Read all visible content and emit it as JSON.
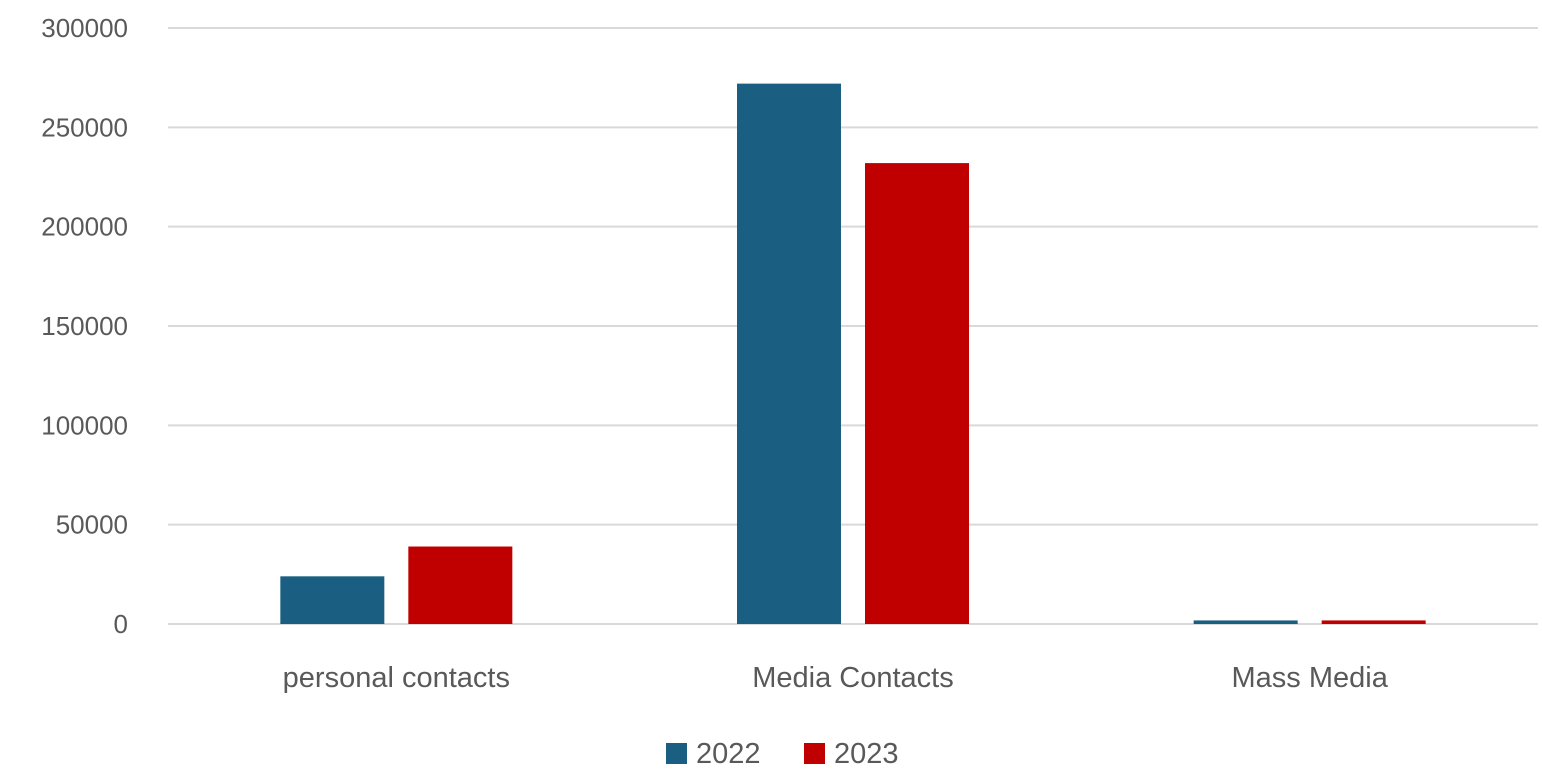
{
  "chart_data": {
    "type": "bar",
    "categories": [
      "personal contacts",
      "Media Contacts",
      "Mass Media"
    ],
    "series": [
      {
        "name": "2022",
        "color": "#1a5e82",
        "values": [
          24000,
          272000,
          1800
        ]
      },
      {
        "name": "2023",
        "color": "#c00000",
        "values": [
          39000,
          232000,
          1800
        ]
      }
    ],
    "ylim": [
      0,
      300000
    ],
    "yticks": [
      0,
      50000,
      100000,
      150000,
      200000,
      250000,
      300000
    ],
    "ytick_labels": [
      "0",
      "50000",
      "100000",
      "150000",
      "200000",
      "250000",
      "300000"
    ],
    "grid": true,
    "legend_position": "bottom"
  }
}
